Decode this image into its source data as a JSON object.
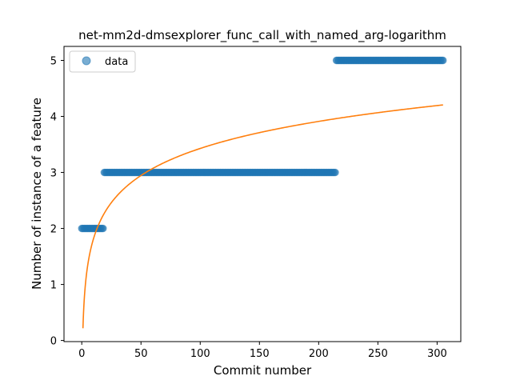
{
  "chart_data": {
    "type": "scatter",
    "title": "net-mm2d-dmsexplorer_func_call_with_named_arg-logarithm",
    "xlabel": "Commit number",
    "ylabel": "Number of instance of a feature",
    "xlim": [
      -15,
      320
    ],
    "ylim": [
      -0.02,
      5.25
    ],
    "xticks": [
      0,
      50,
      100,
      150,
      200,
      250,
      300
    ],
    "yticks": [
      0,
      1,
      2,
      3,
      4,
      5
    ],
    "grid": false,
    "legend_position": "top-left",
    "scatter_segments": [
      {
        "x_start": 0,
        "x_end": 18,
        "y": 2
      },
      {
        "x_start": 19,
        "x_end": 214,
        "y": 3
      },
      {
        "x_start": 215,
        "x_end": 305,
        "y": 5
      }
    ],
    "series": [
      {
        "name": "data",
        "kind": "scatter",
        "color": "#1f77b4"
      },
      {
        "kind": "line",
        "color": "#ff7f0e",
        "fit": {
          "a": 0.2187,
          "b": 0.6969,
          "x_start": 1,
          "x_end": 305
        }
      }
    ]
  }
}
